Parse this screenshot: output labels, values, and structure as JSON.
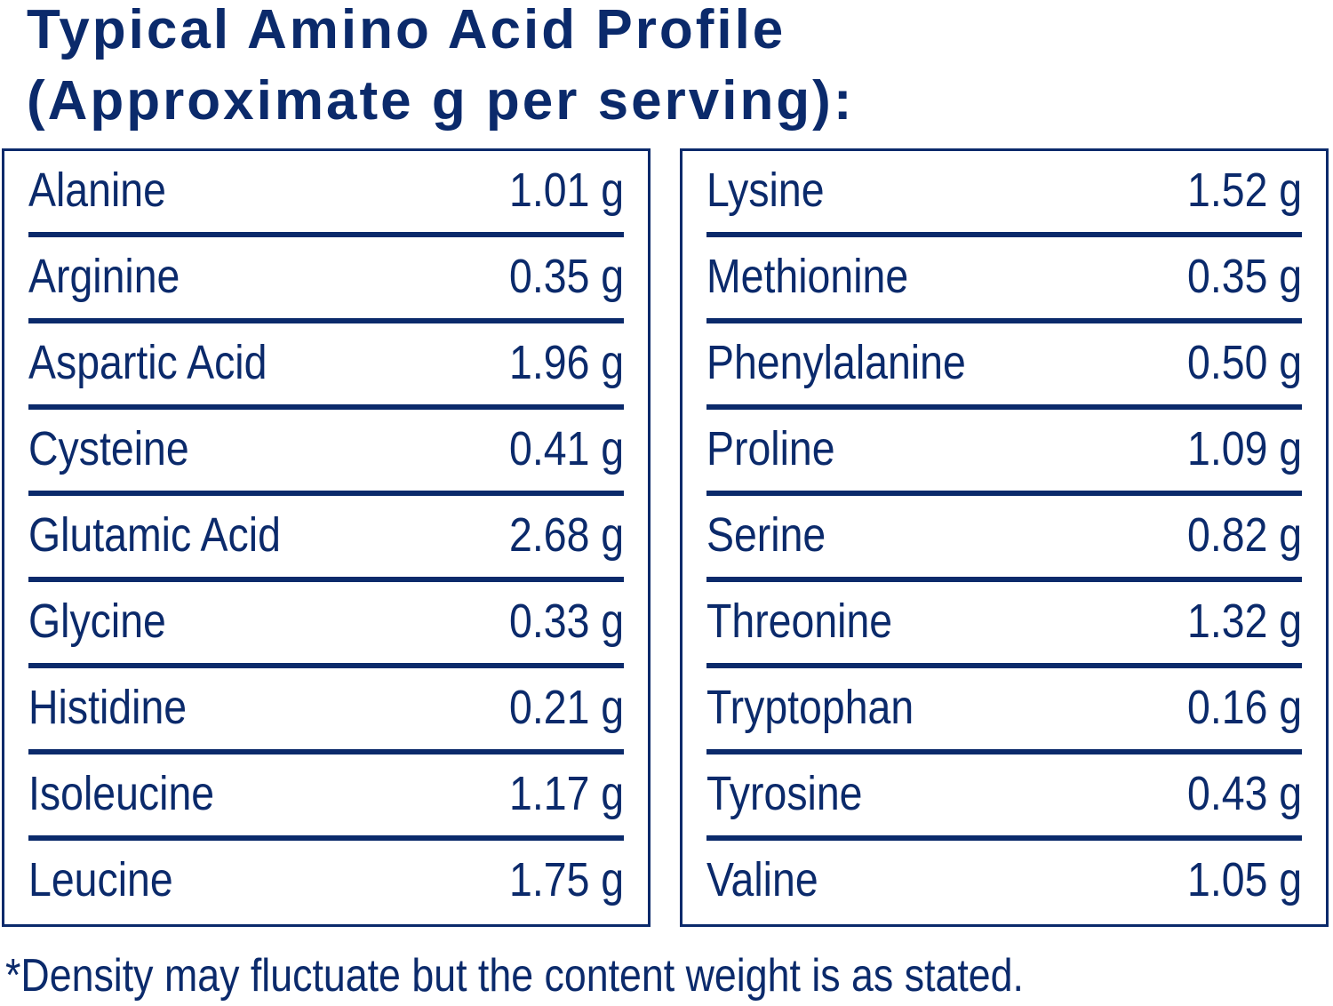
{
  "title": {
    "line1": "Typical Amino Acid Profile",
    "line2": "(Approximate g per serving):"
  },
  "colors": {
    "primary": "#0b2a6b",
    "background": "#ffffff"
  },
  "left_table": [
    {
      "name": "Alanine",
      "value": "1.01 g"
    },
    {
      "name": "Arginine",
      "value": "0.35 g"
    },
    {
      "name": "Aspartic Acid",
      "value": "1.96 g"
    },
    {
      "name": "Cysteine",
      "value": "0.41 g"
    },
    {
      "name": "Glutamic Acid",
      "value": "2.68 g"
    },
    {
      "name": "Glycine",
      "value": "0.33 g"
    },
    {
      "name": "Histidine",
      "value": "0.21 g"
    },
    {
      "name": "Isoleucine",
      "value": "1.17 g"
    },
    {
      "name": "Leucine",
      "value": "1.75 g"
    }
  ],
  "right_table": [
    {
      "name": "Lysine",
      "value": "1.52 g"
    },
    {
      "name": "Methionine",
      "value": "0.35 g"
    },
    {
      "name": "Phenylalanine",
      "value": "0.50 g"
    },
    {
      "name": "Proline",
      "value": "1.09 g"
    },
    {
      "name": "Serine",
      "value": "0.82 g"
    },
    {
      "name": "Threonine",
      "value": "1.32 g"
    },
    {
      "name": "Tryptophan",
      "value": "0.16 g"
    },
    {
      "name": "Tyrosine",
      "value": "0.43 g"
    },
    {
      "name": "Valine",
      "value": "1.05 g"
    }
  ],
  "footnote": "*Density may fluctuate but the content weight is as stated."
}
